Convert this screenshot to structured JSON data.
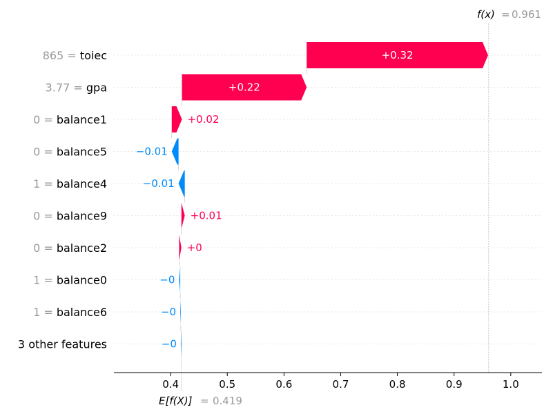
{
  "chart_data": {
    "type": "waterfall",
    "fx_label": "f(x)",
    "fx_value": "0.961",
    "ex_label": "E[f(X)]",
    "ex_value": "0.419",
    "base_value": 0.419,
    "final_value": 0.961,
    "xlim": [
      0.3,
      1.055
    ],
    "x_ticks": [
      0.4,
      0.5,
      0.6,
      0.7,
      0.8,
      0.9,
      1.0
    ],
    "x_tick_labels": [
      "0.4",
      "0.5",
      "0.6",
      "0.7",
      "0.8",
      "0.9",
      "1.0"
    ],
    "features": [
      {
        "value": "865",
        "name": "toiec",
        "contribution": 0.32,
        "label": "+0.32"
      },
      {
        "value": "3.77",
        "name": "gpa",
        "contribution": 0.22,
        "label": "+0.22"
      },
      {
        "value": "0",
        "name": "balance1",
        "contribution": 0.018,
        "label": "+0.02"
      },
      {
        "value": "0",
        "name": "balance5",
        "contribution": -0.012,
        "label": "−0.01"
      },
      {
        "value": "1",
        "name": "balance4",
        "contribution": -0.011,
        "label": "−0.01"
      },
      {
        "value": "0",
        "name": "balance9",
        "contribution": 0.006,
        "label": "+0.01"
      },
      {
        "value": "0",
        "name": "balance2",
        "contribution": 0.004,
        "label": "+0"
      },
      {
        "value": "1",
        "name": "balance0",
        "contribution": -0.002,
        "label": "−0"
      },
      {
        "value": "1",
        "name": "balance6",
        "contribution": -0.001,
        "label": "−0"
      },
      {
        "value": "",
        "name": "3 other features",
        "contribution": -0.001,
        "label": "−0"
      }
    ],
    "colors": {
      "positive": "#ff0051",
      "negative": "#008bfb",
      "feature_value": "#999999",
      "text": "#000000",
      "axis": "#000000",
      "grid": "#e6e6e6",
      "marker_line": "#bbbbbb"
    }
  }
}
